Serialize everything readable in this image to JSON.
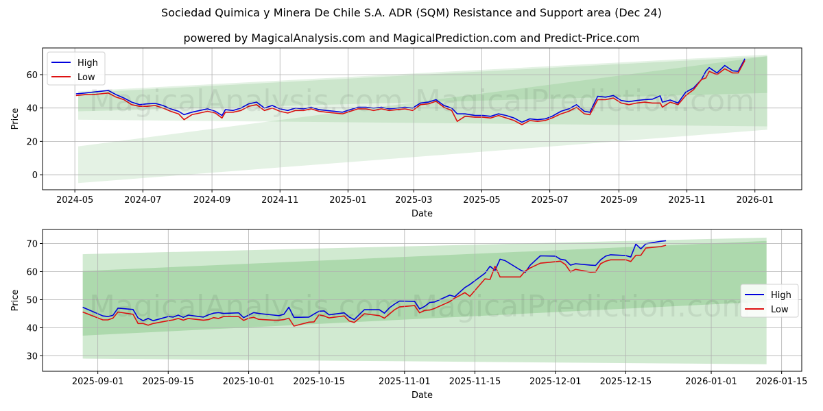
{
  "header": {
    "title": "Sociedad Quimica y Minera De Chile S.A. ADR (SQM) Resistance and Support area (Dec 24)",
    "subtitle": "powered by MagicalAnalysis.com and MagicalPrediction.com and Predict-Price.com"
  },
  "watermarks": [
    "MagicalAnalysis.com",
    "MagicalPrediction.com"
  ],
  "colors": {
    "high": "#0000dd",
    "low": "#dd1111",
    "band": "#2e9e2e",
    "grid": "#b0b0b0"
  },
  "chart_data": [
    {
      "type": "line",
      "title": "",
      "xlabel": "Date",
      "ylabel": "Price",
      "ylim": [
        -9,
        76
      ],
      "xlim": [
        "2024-04-02",
        "2026-02-12"
      ],
      "grid": true,
      "legend": {
        "position": "upper left",
        "entries": [
          "High",
          "Low"
        ]
      },
      "x_ticks": [
        "2024-05",
        "2024-07",
        "2024-09",
        "2024-11",
        "2025-01",
        "2025-03",
        "2025-05",
        "2025-07",
        "2025-09",
        "2025-11",
        "2026-01"
      ],
      "y_ticks": [
        0,
        20,
        40,
        60
      ],
      "x": [
        "2024-05-02",
        "2024-05-10",
        "2024-05-17",
        "2024-05-24",
        "2024-05-31",
        "2024-06-07",
        "2024-06-14",
        "2024-06-21",
        "2024-06-28",
        "2024-07-05",
        "2024-07-12",
        "2024-07-19",
        "2024-07-26",
        "2024-08-02",
        "2024-08-07",
        "2024-08-14",
        "2024-08-21",
        "2024-08-28",
        "2024-09-04",
        "2024-09-10",
        "2024-09-13",
        "2024-09-20",
        "2024-09-27",
        "2024-10-04",
        "2024-10-11",
        "2024-10-18",
        "2024-10-25",
        "2024-11-01",
        "2024-11-08",
        "2024-11-15",
        "2024-11-22",
        "2024-11-29",
        "2024-12-06",
        "2024-12-13",
        "2024-12-20",
        "2024-12-27",
        "2025-01-03",
        "2025-01-10",
        "2025-01-17",
        "2025-01-24",
        "2025-01-31",
        "2025-02-07",
        "2025-02-14",
        "2025-02-21",
        "2025-02-28",
        "2025-03-07",
        "2025-03-14",
        "2025-03-21",
        "2025-03-28",
        "2025-04-04",
        "2025-04-09",
        "2025-04-16",
        "2025-04-25",
        "2025-05-02",
        "2025-05-09",
        "2025-05-16",
        "2025-05-23",
        "2025-05-30",
        "2025-06-06",
        "2025-06-13",
        "2025-06-20",
        "2025-06-27",
        "2025-07-03",
        "2025-07-11",
        "2025-07-18",
        "2025-07-25",
        "2025-08-01",
        "2025-08-06",
        "2025-08-13",
        "2025-08-20",
        "2025-08-27",
        "2025-09-03",
        "2025-09-10",
        "2025-09-17",
        "2025-09-24",
        "2025-10-01",
        "2025-10-08",
        "2025-10-10",
        "2025-10-17",
        "2025-10-24",
        "2025-10-31",
        "2025-11-07",
        "2025-11-14",
        "2025-11-18",
        "2025-11-21",
        "2025-11-28",
        "2025-12-05",
        "2025-12-12",
        "2025-12-17",
        "2025-12-23"
      ],
      "series": [
        {
          "name": "High",
          "values": [
            48.5,
            49.0,
            49.5,
            50.0,
            50.5,
            48.0,
            46.0,
            43.5,
            42.0,
            42.5,
            42.8,
            41.5,
            39.5,
            38.0,
            36.0,
            37.5,
            38.5,
            39.5,
            38.0,
            35.5,
            39.0,
            38.5,
            40.0,
            42.5,
            43.5,
            40.0,
            41.5,
            39.5,
            38.5,
            40.0,
            39.5,
            40.5,
            39.0,
            38.5,
            38.0,
            37.5,
            39.0,
            40.5,
            40.5,
            40.0,
            40.5,
            39.5,
            40.0,
            40.5,
            40.0,
            43.0,
            43.5,
            45.0,
            41.5,
            40.0,
            36.5,
            36.5,
            35.5,
            35.5,
            35.0,
            36.5,
            35.5,
            34.0,
            31.5,
            33.5,
            33.0,
            33.5,
            35.0,
            38.0,
            39.5,
            42.0,
            38.0,
            37.5,
            47.0,
            46.5,
            47.5,
            44.5,
            43.8,
            44.5,
            45.0,
            45.3,
            47.3,
            43.5,
            44.8,
            43.0,
            49.5,
            52.0,
            57.0,
            62.0,
            64.2,
            61.0,
            65.5,
            62.3,
            62.0,
            69.5
          ]
        },
        {
          "name": "Low",
          "values": [
            47.5,
            48.0,
            48.0,
            48.5,
            49.0,
            46.5,
            45.0,
            42.0,
            41.0,
            41.0,
            41.5,
            40.0,
            38.0,
            36.5,
            33.0,
            36.0,
            37.0,
            38.0,
            37.0,
            34.0,
            37.5,
            37.5,
            38.5,
            41.0,
            42.0,
            38.5,
            40.0,
            38.0,
            37.0,
            38.5,
            38.5,
            39.5,
            38.0,
            37.5,
            37.0,
            36.5,
            38.0,
            39.5,
            39.5,
            38.5,
            39.5,
            38.5,
            39.0,
            39.5,
            38.5,
            42.0,
            42.5,
            44.0,
            40.5,
            38.5,
            32.0,
            35.0,
            34.5,
            34.5,
            34.0,
            35.5,
            34.0,
            32.5,
            30.0,
            32.5,
            32.0,
            32.5,
            34.0,
            36.5,
            38.0,
            40.5,
            36.5,
            36.0,
            45.0,
            45.0,
            46.0,
            43.0,
            42.0,
            43.0,
            43.5,
            43.0,
            43.0,
            40.5,
            43.5,
            42.0,
            47.5,
            51.0,
            57.0,
            58.0,
            62.0,
            60.0,
            63.5,
            61.0,
            61.0,
            68.5
          ]
        }
      ],
      "bands": [
        {
          "name": "upper-area",
          "start": "2024-05-04",
          "end": "2026-01-12",
          "outer_top": [
            50,
            72
          ],
          "inner_top": [
            49,
            71
          ],
          "inner_bottom": [
            38,
            49
          ],
          "outer_bottom": [
            33,
            29
          ]
        },
        {
          "name": "lower-area",
          "start": "2024-05-04",
          "end": "2026-01-12",
          "top": [
            17,
            71
          ],
          "bottom": [
            -5,
            27
          ]
        }
      ]
    },
    {
      "type": "line",
      "title": "",
      "xlabel": "Date",
      "ylabel": "Price",
      "ylim": [
        24.5,
        75
      ],
      "xlim": [
        "2025-08-21",
        "2026-01-19"
      ],
      "grid": true,
      "legend": {
        "position": "center right",
        "entries": [
          "High",
          "Low"
        ]
      },
      "x_ticks": [
        "2025-09-01",
        "2025-09-15",
        "2025-10-01",
        "2025-10-15",
        "2025-11-01",
        "2025-11-15",
        "2025-12-01",
        "2025-12-15",
        "2026-01-01",
        "2026-01-15"
      ],
      "y_ticks": [
        30,
        40,
        50,
        60,
        70
      ],
      "x": [
        "2025-08-29",
        "2025-09-02",
        "2025-09-03",
        "2025-09-04",
        "2025-09-05",
        "2025-09-08",
        "2025-09-09",
        "2025-09-10",
        "2025-09-11",
        "2025-09-12",
        "2025-09-15",
        "2025-09-16",
        "2025-09-17",
        "2025-09-18",
        "2025-09-19",
        "2025-09-22",
        "2025-09-23",
        "2025-09-24",
        "2025-09-25",
        "2025-09-26",
        "2025-09-29",
        "2025-09-30",
        "2025-10-01",
        "2025-10-02",
        "2025-10-03",
        "2025-10-06",
        "2025-10-07",
        "2025-10-08",
        "2025-10-09",
        "2025-10-10",
        "2025-10-13",
        "2025-10-14",
        "2025-10-15",
        "2025-10-16",
        "2025-10-17",
        "2025-10-20",
        "2025-10-21",
        "2025-10-22",
        "2025-10-23",
        "2025-10-24",
        "2025-10-27",
        "2025-10-28",
        "2025-10-29",
        "2025-10-30",
        "2025-10-31",
        "2025-11-03",
        "2025-11-04",
        "2025-11-05",
        "2025-11-06",
        "2025-11-07",
        "2025-11-10",
        "2025-11-11",
        "2025-11-12",
        "2025-11-13",
        "2025-11-14",
        "2025-11-17",
        "2025-11-18",
        "2025-11-19",
        "2025-11-20",
        "2025-11-21",
        "2025-11-24",
        "2025-11-25",
        "2025-11-26",
        "2025-11-28",
        "2025-12-01",
        "2025-12-02",
        "2025-12-03",
        "2025-12-04",
        "2025-12-05",
        "2025-12-08",
        "2025-12-09",
        "2025-12-10",
        "2025-12-11",
        "2025-12-12",
        "2025-12-15",
        "2025-12-16",
        "2025-12-17",
        "2025-12-18",
        "2025-12-19",
        "2025-12-22",
        "2025-12-23"
      ],
      "series": [
        {
          "name": "High",
          "values": [
            47.3,
            44.2,
            44.0,
            44.4,
            47.0,
            46.5,
            43.5,
            42.5,
            43.3,
            42.5,
            44.0,
            43.8,
            44.5,
            43.7,
            44.5,
            43.8,
            44.6,
            45.2,
            45.4,
            45.1,
            45.3,
            43.6,
            44.5,
            45.4,
            45.1,
            44.5,
            44.3,
            44.8,
            47.3,
            43.7,
            43.8,
            44.9,
            45.9,
            46.0,
            44.6,
            45.3,
            43.8,
            42.9,
            44.7,
            46.4,
            46.4,
            45.2,
            47.1,
            48.4,
            49.5,
            49.4,
            46.7,
            47.6,
            49.0,
            49.2,
            51.6,
            51.1,
            52.7,
            54.3,
            55.4,
            59.4,
            61.9,
            60.4,
            64.4,
            63.9,
            60.6,
            59.7,
            62.3,
            65.6,
            65.5,
            64.4,
            64.1,
            62.3,
            62.8,
            62.3,
            62.2,
            64.2,
            65.5,
            66.0,
            65.7,
            65.2,
            69.8,
            68.1,
            69.9,
            70.8,
            71.0
          ]
        },
        {
          "name": "Low",
          "values": [
            45.6,
            42.8,
            42.8,
            43.4,
            45.6,
            44.8,
            41.5,
            41.5,
            40.9,
            41.5,
            42.5,
            42.8,
            43.3,
            42.7,
            43.3,
            42.7,
            42.9,
            43.6,
            43.3,
            44.0,
            44.0,
            42.6,
            43.4,
            43.7,
            43.0,
            42.7,
            42.7,
            42.9,
            43.4,
            40.6,
            42.0,
            42.1,
            44.6,
            44.2,
            43.5,
            44.2,
            42.4,
            41.9,
            43.4,
            45.0,
            44.3,
            43.4,
            44.9,
            46.4,
            47.4,
            47.9,
            45.3,
            46.2,
            46.3,
            46.9,
            49.3,
            50.6,
            51.5,
            52.5,
            51.2,
            57.4,
            57.2,
            61.9,
            58.1,
            58.1,
            58.1,
            60.2,
            61.3,
            63.0,
            63.5,
            63.7,
            62.5,
            59.9,
            60.8,
            59.8,
            59.9,
            62.8,
            63.7,
            64.2,
            64.2,
            63.6,
            65.8,
            65.8,
            68.4,
            68.9,
            69.4
          ]
        }
      ],
      "bands": [
        {
          "name": "outer-area",
          "start": "2025-08-29",
          "end": "2026-01-12",
          "top": [
            66.2,
            72.1
          ],
          "bottom": [
            29.0,
            27.0
          ]
        },
        {
          "name": "inner-area",
          "start": "2025-08-29",
          "end": "2026-01-12",
          "top": [
            60.2,
            70.9
          ],
          "bottom": [
            37.2,
            49.3
          ]
        }
      ]
    }
  ]
}
